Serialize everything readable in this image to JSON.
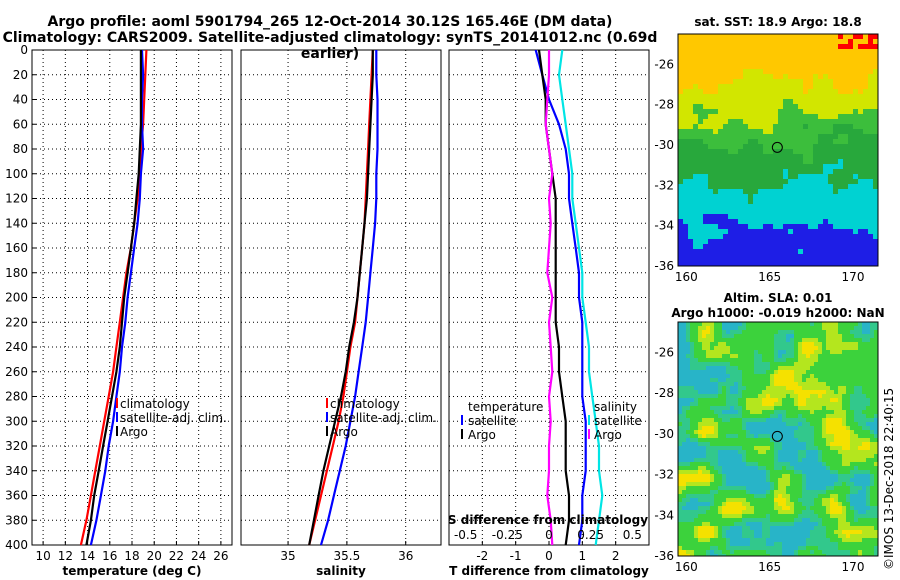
{
  "header": {
    "line1": "Argo profile: aoml 5901794_265 12-Oct-2014 30.12S 165.46E (DM data)",
    "line2": "Climatology: CARS2009. Satellite-adjusted climatology: synTS_20141012.nc (0.69d earlier)"
  },
  "credit": "©IMOS 13-Dec-2018 22:40:15",
  "colors": {
    "red": "#ff0000",
    "blue": "#0000ff",
    "black": "#000000",
    "cyan": "#00e5e5",
    "magenta": "#ff00ff"
  },
  "chart_data": [
    {
      "type": "line",
      "id": "temperature",
      "xlabel": "temperature (deg C)",
      "xlim": [
        9,
        27
      ],
      "ylim": [
        0,
        400
      ],
      "xticks": [
        10,
        12,
        14,
        16,
        18,
        20,
        22,
        24,
        26
      ],
      "yticks": [
        0,
        20,
        40,
        60,
        80,
        100,
        120,
        140,
        160,
        180,
        200,
        220,
        240,
        260,
        280,
        300,
        320,
        340,
        360,
        380,
        400
      ],
      "legend": [
        "climatology",
        "satellite-adj. clim.",
        "Argo"
      ],
      "series": [
        {
          "name": "climatology",
          "color": "#ff0000",
          "x": [
            19.3,
            19.2,
            19.1,
            19.0,
            18.8,
            18.7,
            18.5,
            18.2,
            17.9,
            17.5,
            17.2,
            16.9,
            16.6,
            16.3,
            15.9,
            15.5,
            15.1,
            14.7,
            14.3,
            13.9,
            13.4
          ],
          "y": [
            0,
            20,
            40,
            60,
            80,
            100,
            120,
            140,
            160,
            180,
            200,
            220,
            240,
            260,
            280,
            300,
            320,
            340,
            360,
            380,
            400
          ]
        },
        {
          "name": "satellite-adj. clim.",
          "color": "#0000ff",
          "x": [
            18.9,
            19.0,
            18.9,
            18.9,
            19.0,
            18.8,
            18.7,
            18.5,
            18.2,
            17.9,
            17.6,
            17.4,
            17.1,
            16.9,
            16.6,
            16.3,
            15.9,
            15.6,
            15.2,
            14.8,
            14.3
          ],
          "y": [
            0,
            20,
            40,
            60,
            80,
            100,
            120,
            140,
            160,
            180,
            200,
            220,
            240,
            260,
            280,
            300,
            320,
            340,
            360,
            380,
            400
          ]
        },
        {
          "name": "Argo",
          "color": "#000000",
          "x": [
            18.8,
            18.8,
            18.8,
            18.8,
            18.7,
            18.6,
            18.4,
            18.2,
            17.9,
            17.6,
            17.3,
            17.1,
            16.9,
            16.6,
            16.2,
            15.8,
            15.4,
            15.0,
            14.6,
            14.3,
            13.9
          ],
          "y": [
            0,
            20,
            40,
            60,
            80,
            100,
            120,
            140,
            160,
            180,
            200,
            220,
            240,
            260,
            280,
            300,
            320,
            340,
            360,
            380,
            400
          ]
        }
      ]
    },
    {
      "type": "line",
      "id": "salinity",
      "xlabel": "salinity",
      "xlim": [
        34.6,
        36.3
      ],
      "ylim": [
        0,
        400
      ],
      "xticks": [
        35,
        35.5,
        36
      ],
      "xtick_labels": [
        "35",
        "35.5",
        "36"
      ],
      "yticks": [
        0,
        20,
        40,
        60,
        80,
        100,
        120,
        140,
        160,
        180,
        200,
        220,
        240,
        260,
        280,
        300,
        320,
        340,
        360,
        380,
        400
      ],
      "legend": [
        "climatology",
        "satellite-adj. clim.",
        "Argo"
      ],
      "series": [
        {
          "name": "climatology",
          "color": "#ff0000",
          "x": [
            35.72,
            35.71,
            35.7,
            35.69,
            35.68,
            35.67,
            35.66,
            35.65,
            35.63,
            35.61,
            35.59,
            35.57,
            35.53,
            35.5,
            35.47,
            35.43,
            35.38,
            35.33,
            35.28,
            35.23,
            35.18
          ],
          "y": [
            0,
            20,
            40,
            60,
            80,
            100,
            120,
            140,
            160,
            180,
            200,
            220,
            240,
            260,
            280,
            300,
            320,
            340,
            360,
            380,
            400
          ]
        },
        {
          "name": "satellite-adj. clim.",
          "color": "#0000ff",
          "x": [
            35.75,
            35.75,
            35.76,
            35.76,
            35.76,
            35.75,
            35.75,
            35.74,
            35.72,
            35.7,
            35.68,
            35.66,
            35.63,
            35.6,
            35.57,
            35.53,
            35.49,
            35.44,
            35.39,
            35.34,
            35.28
          ],
          "y": [
            0,
            20,
            40,
            60,
            80,
            100,
            120,
            140,
            160,
            180,
            200,
            220,
            240,
            260,
            280,
            300,
            320,
            340,
            360,
            380,
            400
          ]
        },
        {
          "name": "Argo",
          "color": "#000000",
          "x": [
            35.72,
            35.72,
            35.71,
            35.7,
            35.69,
            35.68,
            35.67,
            35.65,
            35.63,
            35.61,
            35.59,
            35.56,
            35.52,
            35.49,
            35.45,
            35.4,
            35.35,
            35.3,
            35.26,
            35.22,
            35.18
          ],
          "y": [
            0,
            20,
            40,
            60,
            80,
            100,
            120,
            140,
            160,
            180,
            200,
            220,
            240,
            260,
            280,
            300,
            320,
            340,
            360,
            380,
            400
          ]
        }
      ]
    },
    {
      "type": "line",
      "id": "difference",
      "xlabel": "T difference from climatology",
      "xlabel_top": "S difference from climatology",
      "xlim": [
        -3,
        3
      ],
      "ylim": [
        0,
        400
      ],
      "xticks": [
        -2,
        -1,
        0,
        1,
        2
      ],
      "xticks_top": [
        -0.5,
        -0.25,
        0,
        0.25,
        0.5
      ],
      "xtick_labels_top": [
        "-0.5",
        "-0.25",
        "0",
        "0.25",
        "0.5"
      ],
      "yticks": [
        0,
        20,
        40,
        60,
        80,
        100,
        120,
        140,
        160,
        180,
        200,
        220,
        240,
        260,
        280,
        300,
        320,
        340,
        360,
        380,
        400
      ],
      "legend_left_title": "temperature",
      "legend_left": [
        "satellite",
        "Argo"
      ],
      "legend_right_title": "salinity",
      "legend_right": [
        "satellite",
        "Argo"
      ],
      "series": [
        {
          "name": "T satellite",
          "color": "#0000ff",
          "x": [
            -0.4,
            -0.2,
            0.0,
            0.3,
            0.5,
            0.6,
            0.6,
            0.7,
            0.8,
            0.9,
            0.9,
            1.0,
            1.0,
            1.0,
            1.0,
            1.1,
            1.1,
            1.1,
            1.0,
            1.0,
            0.9
          ],
          "y": [
            0,
            20,
            40,
            60,
            80,
            100,
            120,
            140,
            160,
            180,
            200,
            220,
            240,
            260,
            280,
            300,
            320,
            340,
            360,
            380,
            400
          ]
        },
        {
          "name": "T Argo",
          "color": "#000000",
          "x": [
            -0.3,
            -0.2,
            -0.1,
            -0.1,
            0.0,
            0.1,
            0.2,
            0.2,
            0.2,
            0.2,
            0.2,
            0.2,
            0.3,
            0.3,
            0.4,
            0.5,
            0.5,
            0.5,
            0.6,
            0.6,
            0.5
          ],
          "y": [
            0,
            20,
            40,
            60,
            80,
            100,
            120,
            140,
            160,
            180,
            200,
            220,
            240,
            260,
            280,
            300,
            320,
            340,
            360,
            380,
            400
          ]
        },
        {
          "name": "S satellite",
          "color": "#00e5e5",
          "x": [
            0.08,
            0.06,
            0.08,
            0.1,
            0.12,
            0.14,
            0.14,
            0.16,
            0.18,
            0.2,
            0.2,
            0.22,
            0.24,
            0.24,
            0.26,
            0.28,
            0.3,
            0.3,
            0.32,
            0.3,
            0.28
          ],
          "y": [
            0,
            20,
            40,
            60,
            80,
            100,
            120,
            140,
            160,
            180,
            200,
            220,
            240,
            260,
            280,
            300,
            320,
            340,
            360,
            380,
            400
          ]
        },
        {
          "name": "S Argo",
          "color": "#ff00ff",
          "x": [
            0.0,
            0.0,
            -0.01,
            -0.02,
            0.0,
            0.02,
            0.0,
            0.01,
            0.0,
            -0.01,
            0.02,
            0.0,
            0.01,
            0.02,
            0.0,
            0.01,
            0.0,
            0.0,
            -0.01,
            0.01,
            0.02
          ],
          "y": [
            0,
            20,
            40,
            60,
            80,
            100,
            120,
            140,
            160,
            180,
            200,
            220,
            240,
            260,
            280,
            300,
            320,
            340,
            360,
            380,
            400
          ]
        }
      ]
    },
    {
      "type": "heatmap",
      "id": "sst_map",
      "title": "sat. SST: 18.9 Argo: 18.8",
      "xlim": [
        159.5,
        171.5
      ],
      "ylim": [
        -36,
        -24.5
      ],
      "xticks": [
        160,
        165,
        170
      ],
      "yticks": [
        -26,
        -28,
        -30,
        -32,
        -34,
        -36
      ],
      "argo_position": {
        "lon": 165.46,
        "lat": -30.12
      }
    },
    {
      "type": "heatmap",
      "id": "sla_map",
      "title_line1": "Altim. SLA: 0.01",
      "title_line2": "Argo h1000: -0.019 h2000: NaN",
      "xlim": [
        159.5,
        171.5
      ],
      "ylim": [
        -36,
        -24.5
      ],
      "xticks": [
        160,
        165,
        170
      ],
      "yticks": [
        -26,
        -28,
        -30,
        -32,
        -34,
        -36
      ],
      "argo_position": {
        "lon": 165.46,
        "lat": -30.12
      }
    }
  ]
}
